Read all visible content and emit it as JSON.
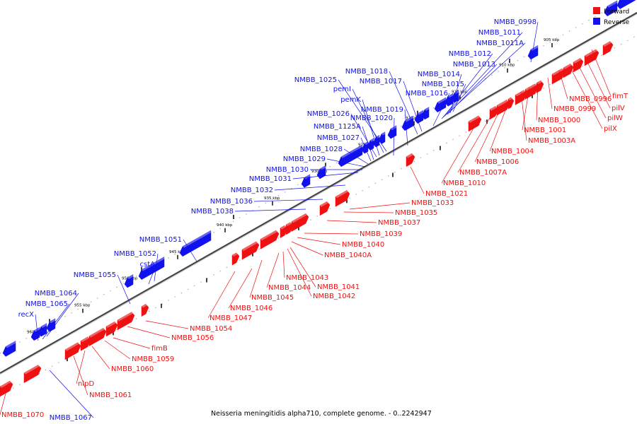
{
  "colors": {
    "forward": "#ee1111",
    "reverse": "#1111ee",
    "backbone": "#333333"
  },
  "legend": {
    "forward_label": "Forward",
    "reverse_label": "Reverse"
  },
  "caption": "Neisseria meningitidis alpha710, complete genome. - 0..2242947",
  "ticks": [
    "905 kbp",
    "910 kbp",
    "915 kbp",
    "920 kbp",
    "925 kbp",
    "930 kbp",
    "935 kbp",
    "940 kbp",
    "945 kbp",
    "950 kbp",
    "955 kbp",
    "960 kbp"
  ],
  "reverse_labels": [
    "NMBB_0998",
    "NMBB_1011",
    "NMBB_1011A",
    "NMBB_1012",
    "NMBB_1013",
    "NMBB_1014",
    "NMBB_1015",
    "NMBB_1016",
    "NMBB_1017",
    "NMBB_1018",
    "NMBB_1025",
    "pemI",
    "pemK",
    "NMBB_1019",
    "NMBB_1020",
    "NMBB_1026",
    "NMBB_1125A",
    "NMBB_1027",
    "NMBB_1028",
    "NMBB_1029",
    "NMBB_1030",
    "NMBB_1031",
    "NMBB_1032",
    "NMBB_1036",
    "NMBB_1038",
    "NMBB_1051",
    "NMBB_1052",
    "cstA",
    "NMBB_1055",
    "NMBB_1064",
    "NMBB_1065",
    "recX",
    "NMBB_1067"
  ],
  "forward_labels": [
    "fimT",
    "NMBB_0996",
    "pilV",
    "pilW",
    "pilX",
    "NMBB_0999",
    "NMBB_1000",
    "NMBB_1001",
    "NMBB_1003A",
    "NMBB_1004",
    "NMBB_1006",
    "NMBB_1007A",
    "NMBB_1010",
    "NMBB_1021",
    "NMBB_1033",
    "NMBB_1035",
    "NMBB_1037",
    "NMBB_1039",
    "NMBB_1040",
    "NMBB_1040A",
    "NMBB_1041",
    "NMBB_1042",
    "NMBB_1043",
    "NMBB_1044",
    "NMBB_1045",
    "NMBB_1046",
    "NMBB_1047",
    "NMBB_1054",
    "NMBB_1056",
    "fimB",
    "NMBB_1059",
    "NMBB_1060",
    "nlpD",
    "NMBB_1061",
    "NMBB_1070"
  ]
}
